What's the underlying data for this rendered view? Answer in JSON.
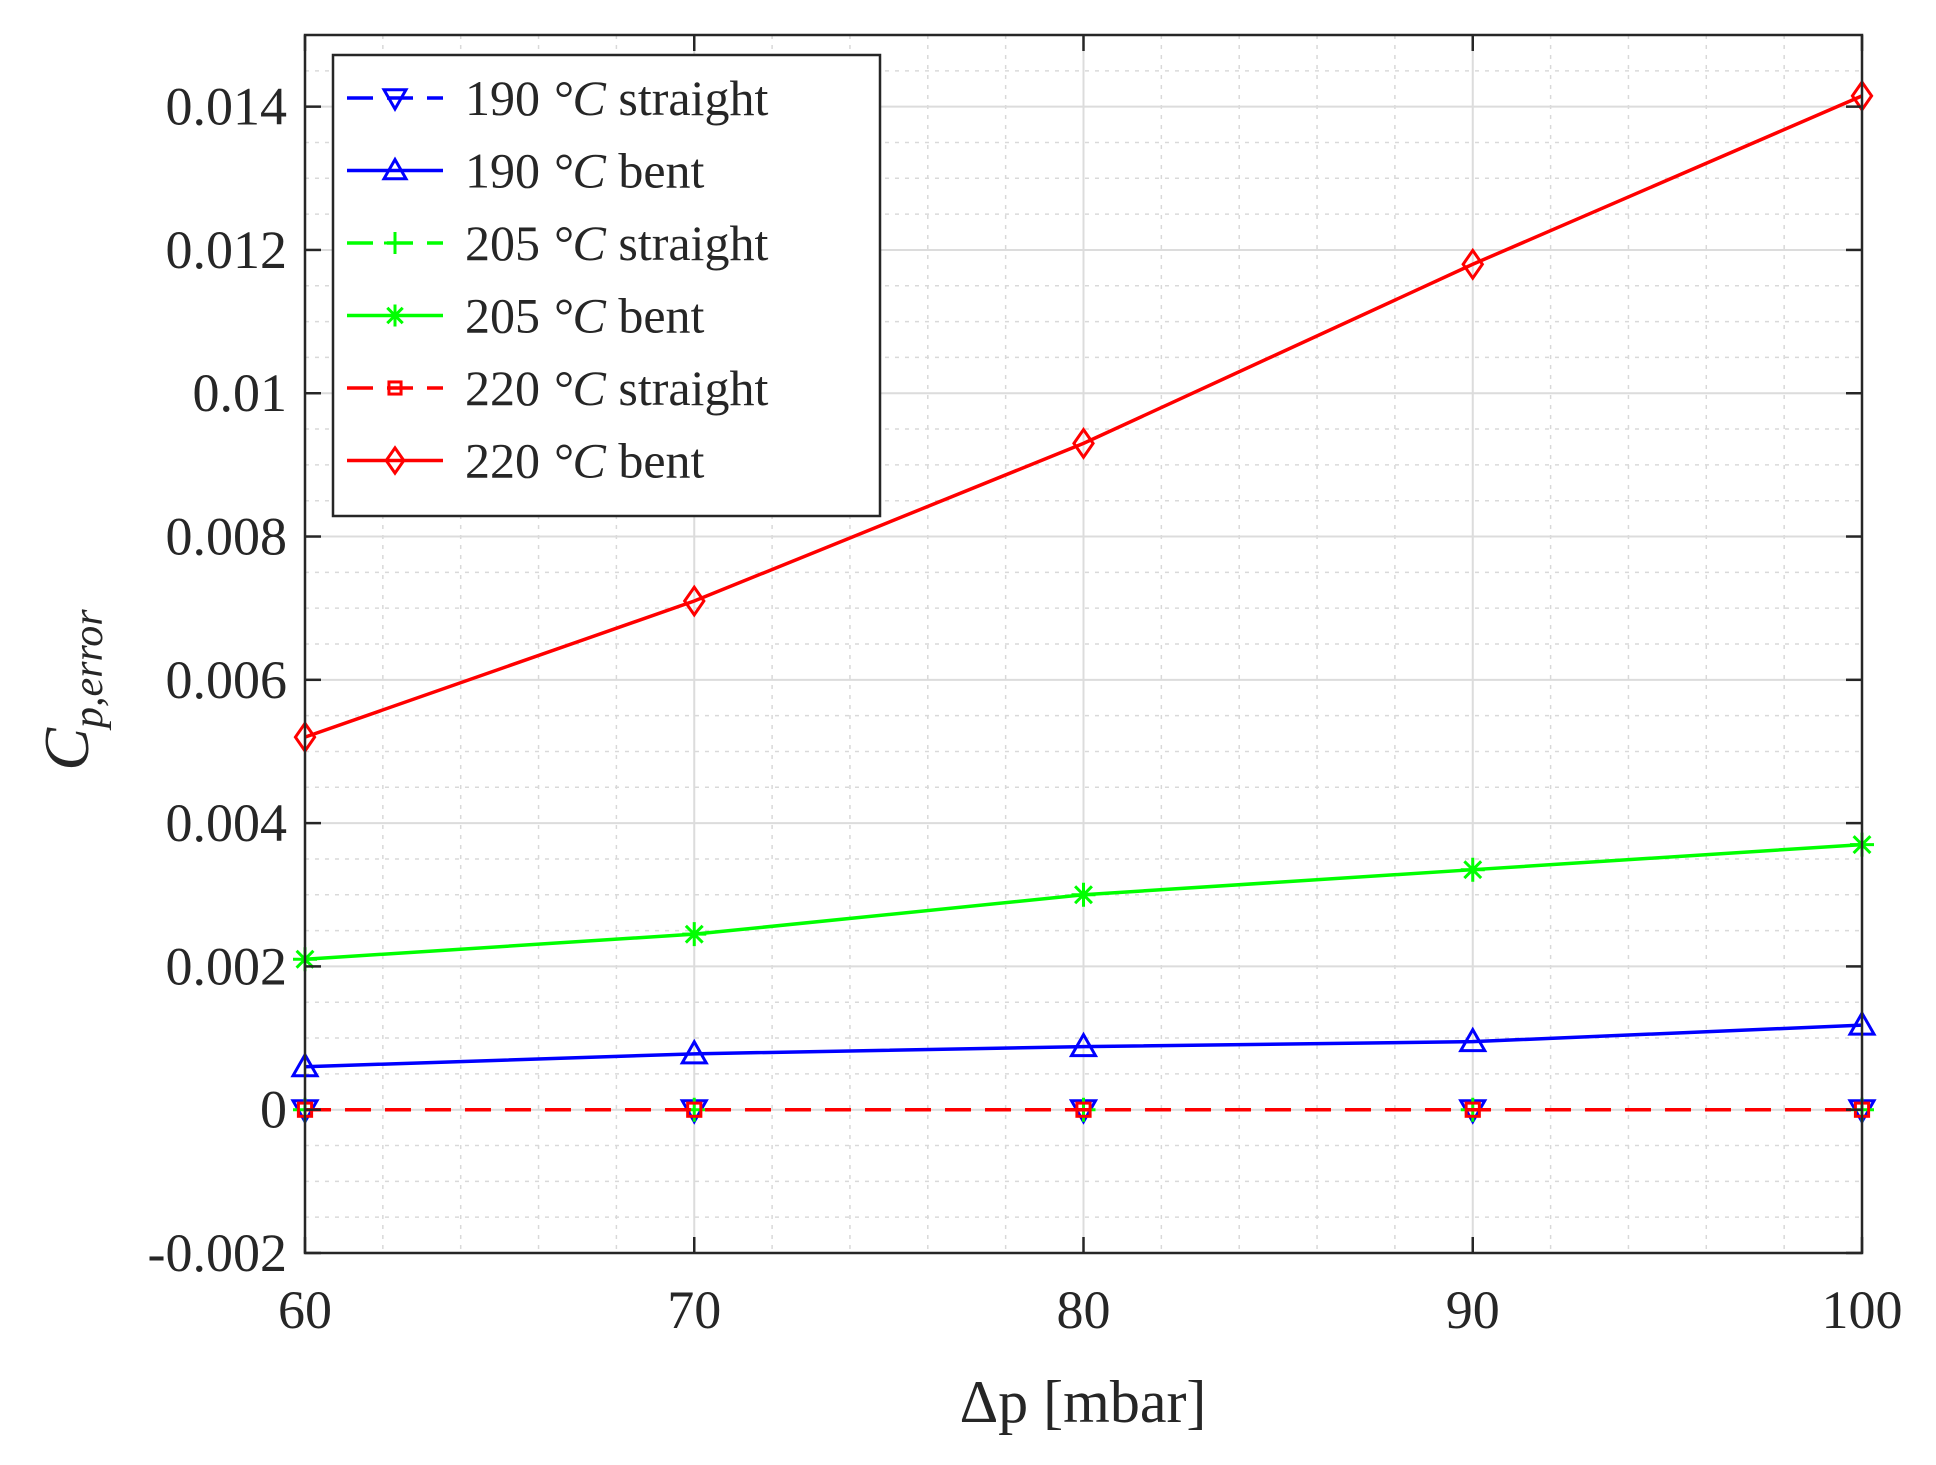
{
  "chart_data": {
    "type": "line",
    "title": "",
    "xlabel": "Δp [mbar]",
    "ylabel": "C",
    "ylabel_subscript": "p,error",
    "x": [
      60,
      70,
      80,
      90,
      100
    ],
    "xlim": [
      60,
      100
    ],
    "ylim": [
      -0.002,
      0.015
    ],
    "x_ticks": [
      60,
      70,
      80,
      90,
      100
    ],
    "x_tick_labels": [
      "60",
      "70",
      "80",
      "90",
      "100"
    ],
    "y_ticks": [
      -0.002,
      0,
      0.002,
      0.004,
      0.006,
      0.008,
      0.01,
      0.012,
      0.014
    ],
    "y_tick_labels": [
      "-0.002",
      "0",
      "0.002",
      "0.004",
      "0.006",
      "0.008",
      "0.01",
      "0.012",
      "0.014"
    ],
    "grid": true,
    "minor_grid": true,
    "legend_position": "top-left",
    "series": [
      {
        "name": "190 °C straight",
        "legend_number": "190",
        "legend_unit": "°C",
        "legend_suffix": "straight",
        "color": "#0000ff",
        "dash": "dashed",
        "marker": "triangle-down",
        "values": [
          0,
          0,
          0,
          0,
          0
        ]
      },
      {
        "name": "190 °C bent",
        "legend_number": "190",
        "legend_unit": "°C",
        "legend_suffix": "bent",
        "color": "#0000ff",
        "dash": "solid",
        "marker": "triangle-up",
        "values": [
          0.0006,
          0.00078,
          0.00088,
          0.00095,
          0.00118
        ]
      },
      {
        "name": "205 °C straight",
        "legend_number": "205",
        "legend_unit": "°C",
        "legend_suffix": "straight",
        "color": "#00ff00",
        "dash": "dashed",
        "marker": "plus",
        "values": [
          0,
          0,
          0,
          0,
          0
        ]
      },
      {
        "name": "205 °C bent",
        "legend_number": "205",
        "legend_unit": "°C",
        "legend_suffix": "bent",
        "color": "#00ff00",
        "dash": "solid",
        "marker": "asterisk",
        "values": [
          0.0021,
          0.00245,
          0.003,
          0.00335,
          0.0037
        ]
      },
      {
        "name": "220 °C straight",
        "legend_number": "220",
        "legend_unit": "°C",
        "legend_suffix": "straight",
        "color": "#ff0000",
        "dash": "dashed",
        "marker": "square",
        "values": [
          0,
          0,
          0,
          0,
          0
        ]
      },
      {
        "name": "220 °C bent",
        "legend_number": "220",
        "legend_unit": "°C",
        "legend_suffix": "bent",
        "color": "#ff0000",
        "dash": "solid",
        "marker": "diamond",
        "values": [
          0.0052,
          0.0071,
          0.0093,
          0.0118,
          0.01415
        ]
      }
    ]
  }
}
